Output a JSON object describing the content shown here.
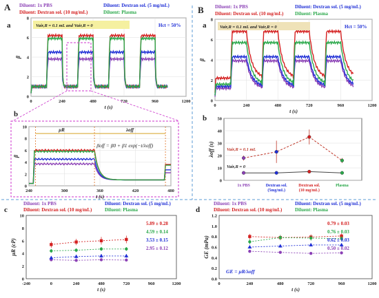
{
  "figure": {
    "panels": {
      "A": "A",
      "B": "B",
      "Aa": "a",
      "Ab": "b",
      "Ba": "a",
      "Bb": "b",
      "c": "c",
      "d": "d"
    },
    "legend_main": [
      "Diluent: 1x PBS",
      "Diluent: Dextran sol. (5 mg/mL)",
      "Diluent: Dextran sol. (10 mg/mL)",
      "Diluent: Plasma"
    ],
    "legend_c": [
      "Diluent: 1x PBS",
      "Diluent: Dextran sol. (5 mg/mL)",
      "Diluent: Dextran sol. (10 mg/mL)",
      "Diluent: Plasma"
    ],
    "legend_d": [
      "Diluent: 1x PBS",
      "Diluent: Dextran sol. (5 mg/mL)",
      "Diluent: Dextran sol. (10 mg/mL)",
      "Diluent: Plasma"
    ],
    "colors": {
      "pbs": "#8a3fb5",
      "d5": "#1f2fd6",
      "d10": "#d42020",
      "plasma": "#2aa84a",
      "box": "#cc33cc",
      "dash": "#5b9bd5"
    }
  },
  "chart_data": [
    {
      "id": "A-a",
      "type": "line",
      "title": "",
      "xlabel": "t (s)",
      "ylabel": "β",
      "annotation": "Vair,R = 0.1 mL and Vair,R = 0",
      "hct": "Hct = 50%",
      "xlim": [
        0,
        1200
      ],
      "ylim": [
        0,
        8
      ],
      "xticks": [
        "0",
        "240",
        "480",
        "720",
        "960",
        "1200"
      ],
      "yticks": [
        "0",
        "2",
        "4",
        "6",
        "8"
      ],
      "series": [
        {
          "name": "Diluent: 1x PBS",
          "high": 3.8,
          "low": 1.0
        },
        {
          "name": "Diluent: Dextran sol. (5 mg/mL)",
          "high": 4.5,
          "low": 1.0
        },
        {
          "name": "Diluent: Dextran sol. (10 mg/mL)",
          "high": 6.2,
          "low": 1.0
        },
        {
          "name": "Diluent: Plasma",
          "high": 5.9,
          "low": 1.0
        }
      ]
    },
    {
      "id": "A-b",
      "type": "line",
      "xlabel": "t (s)",
      "ylabel": "β",
      "formula": "βoff = β0 + β1 exp(−t/λoff)",
      "mu": "μR",
      "lambda": "λoff",
      "xlim": [
        240,
        500
      ],
      "ylim": [
        0,
        10
      ],
      "xticks": [
        "240",
        "300",
        "360",
        "420",
        "480"
      ],
      "yticks": [
        "0",
        "2",
        "4",
        "6",
        "8",
        "10"
      ]
    },
    {
      "id": "B-a",
      "type": "line",
      "xlabel": "t (s)",
      "ylabel": "β",
      "annotation": "Vair,R = 0.1 mL and Vair,R = 0",
      "hct": "Hct = 50%",
      "xlim": [
        0,
        1200
      ],
      "ylim": [
        0,
        8
      ],
      "xticks": [
        "0",
        "240",
        "480",
        "720",
        "960",
        "1200"
      ],
      "yticks": [
        "0",
        "2",
        "4",
        "6",
        "8"
      ],
      "series": [
        {
          "name": "Diluent: 1x PBS",
          "high": 3.9,
          "low": 1.2
        },
        {
          "name": "Diluent: Dextran sol. (5 mg/mL)",
          "high": 4.3,
          "low": 1.4
        },
        {
          "name": "Diluent: Dextran sol. (10 mg/mL)",
          "high": 6.8,
          "low": 2.2
        },
        {
          "name": "Diluent: Plasma",
          "high": 5.7,
          "low": 1.6
        }
      ]
    },
    {
      "id": "B-b",
      "type": "line",
      "xlabel": "",
      "ylabel": "λoff (s)",
      "ylim": [
        0,
        50
      ],
      "yticks": [
        "0",
        "10",
        "20",
        "30",
        "40",
        "50"
      ],
      "categories": [
        "1x PBS",
        "Dextran sol. (5mg/mL)",
        "Dextran sol. (10 mg/mL)",
        "Plasma"
      ],
      "label_top": "Vair,R = 0.1 mL",
      "label_bot": "Vair,R = 0",
      "series": [
        {
          "values": [
            18,
            23,
            35,
            16
          ],
          "err": [
            2,
            9,
            6,
            2
          ]
        },
        {
          "values": [
            6,
            6,
            7,
            6
          ],
          "err": [
            0.5,
            0.5,
            0.5,
            0.5
          ]
        }
      ]
    },
    {
      "id": "c",
      "type": "scatter",
      "xlabel": "t (s)",
      "ylabel": "μR (cP)",
      "xlim": [
        -240,
        1200
      ],
      "ylim": [
        0,
        10
      ],
      "xticks": [
        "-240",
        "0",
        "240",
        "480",
        "720",
        "960",
        "1200"
      ],
      "yticks": [
        "0",
        "2",
        "4",
        "6",
        "8",
        "10"
      ],
      "x": [
        0,
        240,
        480,
        720
      ],
      "series": [
        {
          "name": "Diluent: 1x PBS",
          "values": [
            3.0,
            2.9,
            3.0,
            2.95
          ],
          "err": [
            0.2,
            0.2,
            0.2,
            0.2
          ],
          "mean": "2.95 ± 0.12"
        },
        {
          "name": "Diluent: Dextran sol. (5 mg/mL)",
          "values": [
            3.3,
            3.5,
            3.6,
            3.6
          ],
          "err": [
            0.3,
            0.3,
            0.3,
            0.3
          ],
          "mean": "3.53 ± 0.15"
        },
        {
          "name": "Diluent: Dextran sol. (10 mg/mL)",
          "values": [
            5.4,
            5.8,
            6.0,
            6.2
          ],
          "err": [
            0.5,
            0.5,
            0.6,
            0.6
          ],
          "mean": "5.89 ± 0.28"
        },
        {
          "name": "Diluent: Plasma",
          "values": [
            4.4,
            4.5,
            4.7,
            4.7
          ],
          "err": [
            0.3,
            0.3,
            0.3,
            0.3
          ],
          "mean": "4.59 ± 0.14"
        }
      ]
    },
    {
      "id": "d",
      "type": "scatter",
      "xlabel": "t (s)",
      "ylabel": "GE (mPa)",
      "formula": "GE = μR/λoff",
      "xlim": [
        0,
        1200
      ],
      "ylim": [
        0.0,
        1.2
      ],
      "xticks": [
        "0",
        "240",
        "480",
        "720",
        "960",
        "1200"
      ],
      "yticks": [
        "0.0",
        "0.2",
        "0.4",
        "0.6",
        "0.8",
        "1.0",
        "1.2"
      ],
      "x": [
        240,
        480,
        720,
        960
      ],
      "series": [
        {
          "name": "Diluent: 1x PBS",
          "values": [
            0.52,
            0.5,
            0.48,
            0.49
          ],
          "err": [
            0.02,
            0.02,
            0.02,
            0.02
          ],
          "mean": "0.50 ± 0.02"
        },
        {
          "name": "Diluent: Dextran sol. (5 mg/mL)",
          "values": [
            0.6,
            0.62,
            0.64,
            0.64
          ],
          "err": [
            0.03,
            0.03,
            0.03,
            0.03
          ],
          "mean": "0.62 ± 0.03"
        },
        {
          "name": "Diluent: Dextran sol. (10 mg/mL)",
          "values": [
            0.8,
            0.78,
            0.79,
            0.81
          ],
          "err": [
            0.05,
            0.05,
            0.05,
            0.05
          ],
          "mean": "0.79 ± 0.03"
        },
        {
          "name": "Diluent: Plasma",
          "values": [
            0.7,
            0.78,
            0.77,
            0.76
          ],
          "err": [
            0.05,
            0.05,
            0.05,
            0.05
          ],
          "mean": "0.76 ± 0.03"
        }
      ]
    }
  ]
}
